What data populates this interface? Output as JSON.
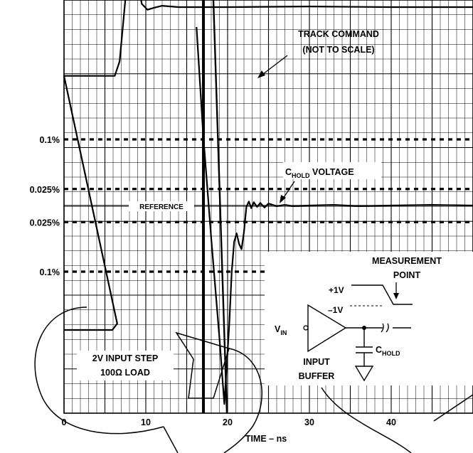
{
  "chart_data": {
    "type": "line",
    "xlabel": "TIME – ns",
    "xlim": [
      0,
      50
    ],
    "x_ticks": [
      "0",
      "10",
      "20",
      "30",
      "40"
    ],
    "y_level_labels": [
      {
        "label": "0.1%",
        "value": 0.1
      },
      {
        "label": "0.025%",
        "value": 0.025
      },
      {
        "label": "0.025%",
        "value": -0.025
      },
      {
        "label": "0.1%",
        "value": -0.1
      }
    ],
    "reference_label": "REFERENCE",
    "annotations": {
      "track_command_line1": "TRACK COMMAND",
      "track_command_line2": "(NOT TO SCALE)",
      "chold_main": "C",
      "chold_sub": "HOLD",
      "chold_suffix": " VOLTAGE",
      "input_step_line1": "2V INPUT STEP",
      "input_step_line2": "100Ω LOAD"
    },
    "inset": {
      "measurement_line1": "MEASUREMENT",
      "measurement_line2": "POINT",
      "plus_label": "+1V",
      "minus_label": "–1V",
      "vin_main": "V",
      "vin_sub": "IN",
      "buffer_line1": "INPUT",
      "buffer_line2": "BUFFER",
      "chold_main": "C",
      "chold_sub": "HOLD"
    },
    "series": [
      {
        "role": "track_command",
        "x": [
          0,
          6.2,
          6.8,
          7.6,
          8.3,
          8.9,
          9.5,
          10.2,
          11,
          12,
          14,
          20,
          30,
          40,
          50
        ],
        "y": [
          0.196,
          0.196,
          0.218,
          0.325,
          0.352,
          0.348,
          0.305,
          0.296,
          0.299,
          0.302,
          0.3,
          0.3,
          0.301,
          0.3,
          0.3
        ]
      },
      {
        "role": "chold_voltage",
        "x": [
          16.2,
          17,
          18,
          19,
          19.6,
          20.2,
          20.5,
          20.8,
          21.1,
          21.4,
          21.7,
          22,
          22.3,
          22.6,
          22.9,
          23.2,
          23.6,
          24,
          24.5,
          25,
          26,
          27,
          28,
          30,
          33,
          36,
          40,
          45,
          50
        ],
        "y": [
          0.27,
          0.11,
          -0.05,
          -0.2,
          -0.3,
          -0.18,
          -0.1,
          -0.055,
          -0.042,
          -0.058,
          -0.066,
          -0.04,
          -0.002,
          0.006,
          -0.004,
          0.005,
          -0.002,
          0.004,
          -0.003,
          0.003,
          -0.001,
          0.001,
          -0.001,
          0.0,
          0.001,
          -0.001,
          0.0,
          0.001,
          0.0
        ]
      }
    ],
    "grid": true
  }
}
